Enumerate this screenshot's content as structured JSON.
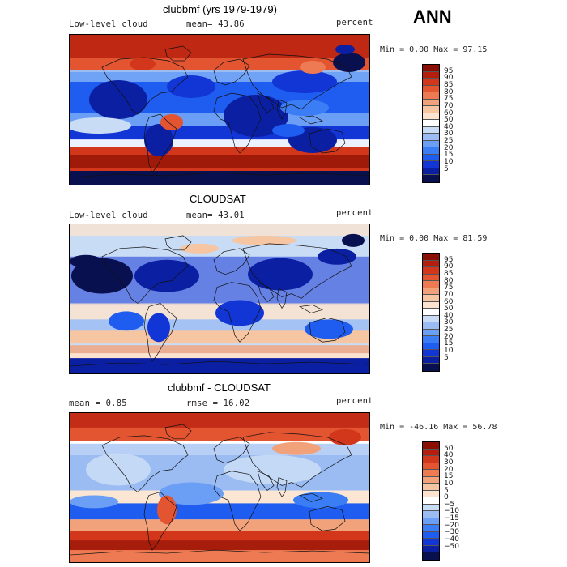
{
  "season": "ANN",
  "colors": {
    "abs_scale": [
      "#08104f",
      "#0b1fa3",
      "#1236d6",
      "#1f5cf0",
      "#3b7df4",
      "#6b9ef5",
      "#9bbcf2",
      "#c9dcf5",
      "#ffffff",
      "#fbe3cf",
      "#f6c5a2",
      "#f2a27a",
      "#ed7a52",
      "#e35431",
      "#d2361b",
      "#b51d0d",
      "#8a0e02"
    ],
    "diff_scale": [
      "#08104f",
      "#0b1fa3",
      "#1236d6",
      "#1f5cf0",
      "#3b7df4",
      "#6b9ef5",
      "#9bbcf2",
      "#c9dcf5",
      "#ffffff",
      "#fbe3cf",
      "#f6c5a2",
      "#f2a27a",
      "#ed7a52",
      "#e35431",
      "#d2361b",
      "#b51d0d",
      "#8a0e02"
    ],
    "continent_outline": "#111111"
  },
  "panels": [
    {
      "title": "clubbmf (yrs 1979-1979)",
      "field": "Low-level cloud",
      "stat": "mean=  43.86",
      "units": "percent",
      "minmax": "Min =   0.00 Max =  97.15",
      "pattern": "model",
      "colorbar_labels": [
        "95",
        "90",
        "85",
        "80",
        "75",
        "70",
        "60",
        "50",
        "40",
        "30",
        "25",
        "20",
        "15",
        "10",
        "5"
      ]
    },
    {
      "title": "CLOUDSAT",
      "field": "Low-level cloud",
      "stat": "mean=  43.01",
      "units": "percent",
      "minmax": "Min =   0.00 Max =  81.59",
      "pattern": "obs",
      "colorbar_labels": [
        "95",
        "90",
        "85",
        "80",
        "75",
        "70",
        "60",
        "50",
        "40",
        "30",
        "25",
        "20",
        "15",
        "10",
        "5"
      ]
    },
    {
      "title": "clubbmf - CLOUDSAT",
      "field": "mean =   0.85",
      "stat": "rmse =  16.02",
      "units": "percent",
      "minmax": "Min = -46.16 Max =  56.78",
      "pattern": "diff",
      "colorbar_labels": [
        "50",
        "40",
        "30",
        "20",
        "15",
        "10",
        "5",
        "0",
        "−5",
        "−10",
        "−15",
        "−20",
        "−30",
        "−40",
        "−50"
      ]
    }
  ]
}
